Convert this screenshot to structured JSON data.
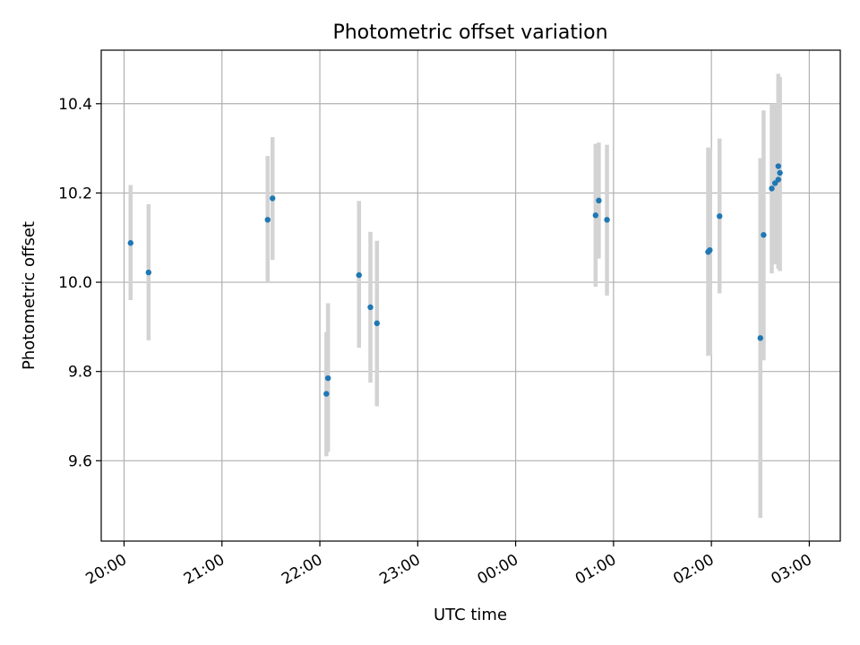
{
  "chart_data": {
    "type": "scatter",
    "title": "Photometric offset variation",
    "xlabel": "UTC time",
    "ylabel": "Photometric offset",
    "x_axis": {
      "kind": "time",
      "min": "19:46",
      "max": "03:19",
      "ticks": [
        "20:00",
        "21:00",
        "22:00",
        "23:00",
        "00:00",
        "01:00",
        "02:00",
        "03:00"
      ]
    },
    "y_axis": {
      "min": 9.42,
      "max": 10.52,
      "ticks": [
        9.6,
        9.8,
        10.0,
        10.2,
        10.4
      ],
      "tick_labels": [
        "9.6",
        "9.8",
        "10.0",
        "10.2",
        "10.4"
      ]
    },
    "grid": true,
    "colors": {
      "points": "#1f77b4",
      "error_bars": "#d3d3d3"
    },
    "points": [
      {
        "x": "20:04",
        "y": 10.088,
        "y_low": 9.96,
        "y_high": 10.218
      },
      {
        "x": "20:15",
        "y": 10.022,
        "y_low": 9.87,
        "y_high": 10.175
      },
      {
        "x": "21:28",
        "y": 10.14,
        "y_low": 10.0,
        "y_high": 10.283
      },
      {
        "x": "21:31",
        "y": 10.188,
        "y_low": 10.05,
        "y_high": 10.325
      },
      {
        "x": "22:04",
        "y": 9.75,
        "y_low": 9.61,
        "y_high": 9.888
      },
      {
        "x": "22:05",
        "y": 9.785,
        "y_low": 9.62,
        "y_high": 9.953
      },
      {
        "x": "22:24",
        "y": 10.016,
        "y_low": 9.853,
        "y_high": 10.182
      },
      {
        "x": "22:31",
        "y": 9.944,
        "y_low": 9.775,
        "y_high": 10.113
      },
      {
        "x": "22:35",
        "y": 9.908,
        "y_low": 9.722,
        "y_high": 10.093
      },
      {
        "x": "00:49",
        "y": 10.15,
        "y_low": 9.99,
        "y_high": 10.31
      },
      {
        "x": "00:51",
        "y": 10.183,
        "y_low": 10.053,
        "y_high": 10.313
      },
      {
        "x": "00:56",
        "y": 10.14,
        "y_low": 9.97,
        "y_high": 10.308
      },
      {
        "x": "01:58",
        "y": 10.068,
        "y_low": 9.835,
        "y_high": 10.302
      },
      {
        "x": "01:59",
        "y": 10.072,
        "y_low": 9.838,
        "y_high": 10.298
      },
      {
        "x": "02:05",
        "y": 10.148,
        "y_low": 9.975,
        "y_high": 10.322
      },
      {
        "x": "02:30",
        "y": 9.875,
        "y_low": 9.472,
        "y_high": 10.278
      },
      {
        "x": "02:32",
        "y": 10.106,
        "y_low": 9.825,
        "y_high": 10.385
      },
      {
        "x": "02:37",
        "y": 10.21,
        "y_low": 10.02,
        "y_high": 10.4
      },
      {
        "x": "02:39",
        "y": 10.222,
        "y_low": 10.04,
        "y_high": 10.4
      },
      {
        "x": "02:41",
        "y": 10.26,
        "y_low": 10.05,
        "y_high": 10.467
      },
      {
        "x": "02:41",
        "y": 10.23,
        "y_low": 10.03,
        "y_high": 10.43
      },
      {
        "x": "02:42",
        "y": 10.245,
        "y_low": 10.025,
        "y_high": 10.46
      }
    ]
  }
}
